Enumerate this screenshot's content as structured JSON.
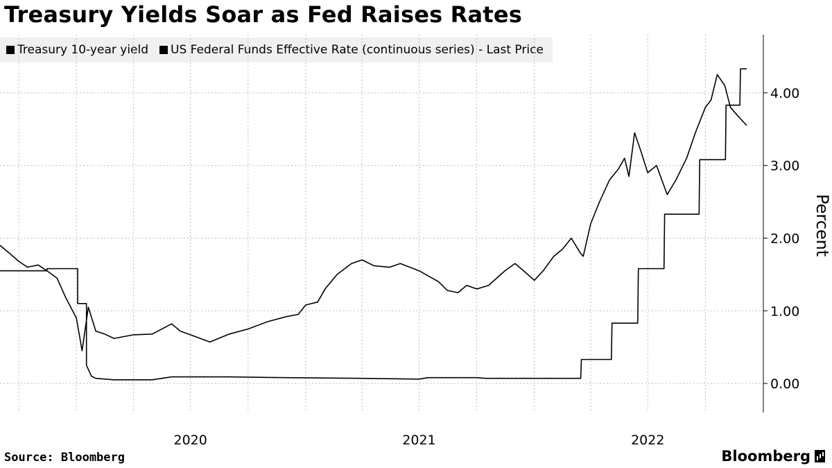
{
  "chart_data": {
    "type": "line",
    "title": "Treasury Yields Soar as Fed Raises Rates",
    "ylabel": "Percent",
    "xlabel": "",
    "ylim": [
      -0.4,
      4.8
    ],
    "x_ticks": [
      "2020",
      "2021",
      "2022"
    ],
    "y_ticks": [
      "0.00",
      "1.00",
      "2.00",
      "3.00",
      "4.00"
    ],
    "y_tick_values": [
      0,
      1,
      2,
      3,
      4
    ],
    "grid": true,
    "legend_position": "top-left",
    "x_domain": [
      "2019-09-01",
      "2022-12-06"
    ],
    "series": [
      {
        "name": "Treasury 10-year yield",
        "points": [
          [
            "2019-09-01",
            1.9
          ],
          [
            "2019-09-15",
            1.8
          ],
          [
            "2019-10-01",
            1.68
          ],
          [
            "2019-10-15",
            1.6
          ],
          [
            "2019-11-01",
            1.63
          ],
          [
            "2019-11-15",
            1.55
          ],
          [
            "2019-12-01",
            1.45
          ],
          [
            "2019-12-15",
            1.18
          ],
          [
            "2020-01-01",
            0.9
          ],
          [
            "2020-01-10",
            0.45
          ],
          [
            "2020-01-20",
            1.05
          ],
          [
            "2020-02-01",
            0.72
          ],
          [
            "2020-02-15",
            0.68
          ],
          [
            "2020-03-01",
            0.62
          ],
          [
            "2020-04-01",
            0.67
          ],
          [
            "2020-05-01",
            0.68
          ],
          [
            "2020-06-01",
            0.82
          ],
          [
            "2020-06-15",
            0.72
          ],
          [
            "2020-07-01",
            0.67
          ],
          [
            "2020-08-01",
            0.57
          ],
          [
            "2020-09-01",
            0.68
          ],
          [
            "2020-10-01",
            0.75
          ],
          [
            "2020-11-01",
            0.85
          ],
          [
            "2020-12-01",
            0.92
          ],
          [
            "2020-12-20",
            0.95
          ],
          [
            "2021-01-01",
            1.08
          ],
          [
            "2021-01-20",
            1.12
          ],
          [
            "2021-02-01",
            1.3
          ],
          [
            "2021-02-20",
            1.5
          ],
          [
            "2021-03-15",
            1.65
          ],
          [
            "2021-04-01",
            1.7
          ],
          [
            "2021-04-20",
            1.62
          ],
          [
            "2021-05-15",
            1.6
          ],
          [
            "2021-06-01",
            1.65
          ],
          [
            "2021-07-01",
            1.55
          ],
          [
            "2021-08-01",
            1.4
          ],
          [
            "2021-08-15",
            1.28
          ],
          [
            "2021-09-01",
            1.25
          ],
          [
            "2021-09-15",
            1.35
          ],
          [
            "2021-10-01",
            1.3
          ],
          [
            "2021-10-20",
            1.35
          ],
          [
            "2021-11-15",
            1.55
          ],
          [
            "2021-12-01",
            1.65
          ],
          [
            "2021-12-15",
            1.55
          ],
          [
            "2022-01-01",
            1.42
          ],
          [
            "2022-01-15",
            1.55
          ],
          [
            "2022-02-01",
            1.75
          ],
          [
            "2022-02-15",
            1.85
          ],
          [
            "2022-03-01",
            2.0
          ],
          [
            "2022-03-15",
            1.8
          ],
          [
            "2022-03-20",
            1.75
          ],
          [
            "2022-04-01",
            2.2
          ],
          [
            "2022-04-15",
            2.5
          ],
          [
            "2022-05-01",
            2.8
          ],
          [
            "2022-05-15",
            2.95
          ],
          [
            "2022-05-25",
            3.1
          ],
          [
            "2022-06-01",
            2.85
          ],
          [
            "2022-06-10",
            3.45
          ],
          [
            "2022-06-20",
            3.2
          ],
          [
            "2022-07-01",
            2.9
          ],
          [
            "2022-07-15",
            3.0
          ],
          [
            "2022-08-01",
            2.6
          ],
          [
            "2022-08-15",
            2.8
          ],
          [
            "2022-09-01",
            3.1
          ],
          [
            "2022-09-15",
            3.45
          ],
          [
            "2022-10-01",
            3.8
          ],
          [
            "2022-10-10",
            3.9
          ],
          [
            "2022-10-20",
            4.25
          ],
          [
            "2022-11-01",
            4.1
          ],
          [
            "2022-11-10",
            3.8
          ],
          [
            "2022-11-20",
            3.7
          ],
          [
            "2022-12-06",
            3.55
          ]
        ]
      },
      {
        "name": "US Federal Funds Effective Rate (continuous series) - Last Price",
        "points": [
          [
            "2019-09-01",
            1.55
          ],
          [
            "2019-11-15",
            1.55
          ],
          [
            "2019-11-15",
            1.58
          ],
          [
            "2020-01-03",
            1.58
          ],
          [
            "2020-01-03",
            1.1
          ],
          [
            "2020-01-17",
            1.1
          ],
          [
            "2020-01-17",
            0.25
          ],
          [
            "2020-01-25",
            0.1
          ],
          [
            "2020-02-01",
            0.07
          ],
          [
            "2020-03-01",
            0.05
          ],
          [
            "2020-05-01",
            0.05
          ],
          [
            "2020-06-01",
            0.09
          ],
          [
            "2020-09-01",
            0.09
          ],
          [
            "2020-12-01",
            0.08
          ],
          [
            "2021-04-01",
            0.07
          ],
          [
            "2021-07-01",
            0.06
          ],
          [
            "2021-07-15",
            0.08
          ],
          [
            "2021-10-01",
            0.08
          ],
          [
            "2021-10-15",
            0.07
          ],
          [
            "2022-03-16",
            0.07
          ],
          [
            "2022-03-17",
            0.33
          ],
          [
            "2022-05-04",
            0.33
          ],
          [
            "2022-05-05",
            0.83
          ],
          [
            "2022-06-15",
            0.83
          ],
          [
            "2022-06-16",
            1.58
          ],
          [
            "2022-07-27",
            1.58
          ],
          [
            "2022-07-28",
            2.33
          ],
          [
            "2022-09-21",
            2.33
          ],
          [
            "2022-09-22",
            3.08
          ],
          [
            "2022-11-02",
            3.08
          ],
          [
            "2022-11-03",
            3.83
          ],
          [
            "2022-11-25",
            3.83
          ],
          [
            "2022-11-26",
            4.33
          ],
          [
            "2022-12-06",
            4.33
          ]
        ]
      }
    ]
  },
  "source_text": "Source: Bloomberg",
  "brand_text": "Bloomberg",
  "colors": {
    "line": "#000000",
    "grid": "#bbbbbb",
    "legend_bg": "#f0f0f0"
  }
}
